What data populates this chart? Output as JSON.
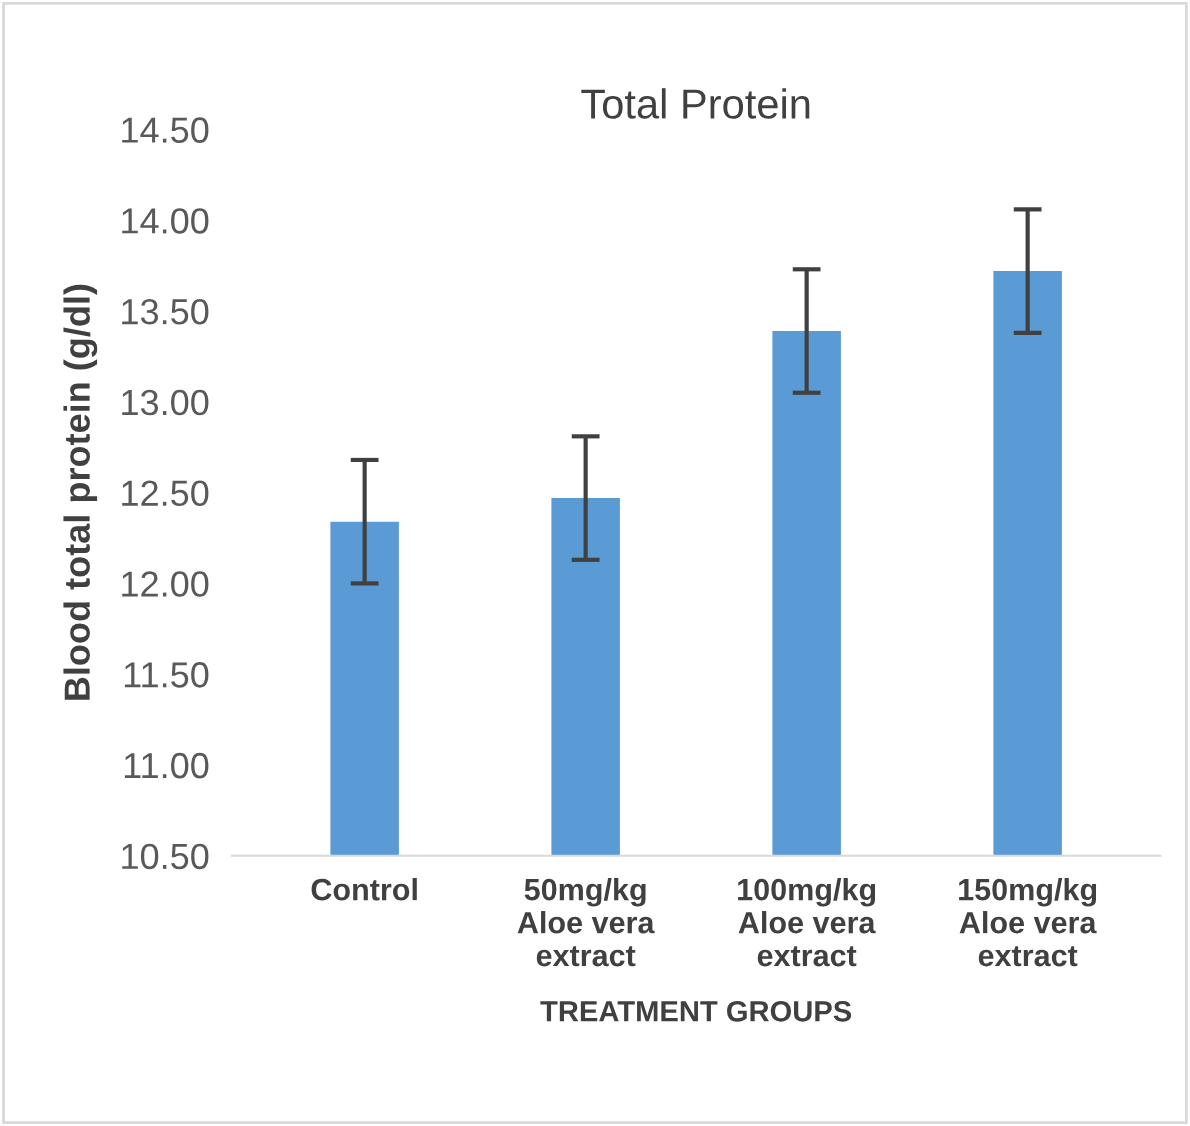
{
  "chart_data": {
    "type": "bar",
    "title": "Total Protein",
    "xlabel": "TREATMENT GROUPS",
    "ylabel": "Blood total protein (g/dl)",
    "categories": [
      "Control",
      "50mg/kg\nAloe vera\nextract",
      "100mg/kg\nAloe vera\nextract",
      "150mg/kg\nAloe vera\nextract"
    ],
    "values": [
      12.34,
      12.47,
      13.39,
      13.72
    ],
    "errors": [
      0.34,
      0.34,
      0.34,
      0.34
    ],
    "color": "#5b9bd5",
    "ylim": [
      10.5,
      14.5
    ],
    "yticks": [
      {
        "value": 10.5,
        "label": "10.50"
      },
      {
        "value": 11.0,
        "label": "11.00"
      },
      {
        "value": 11.5,
        "label": "11.50"
      },
      {
        "value": 12.0,
        "label": "12.00"
      },
      {
        "value": 12.5,
        "label": "12.50"
      },
      {
        "value": 13.0,
        "label": "13.00"
      },
      {
        "value": 13.5,
        "label": "13.50"
      },
      {
        "value": 14.0,
        "label": "14.00"
      },
      {
        "value": 14.5,
        "label": "14.50"
      }
    ],
    "grid": false
  }
}
